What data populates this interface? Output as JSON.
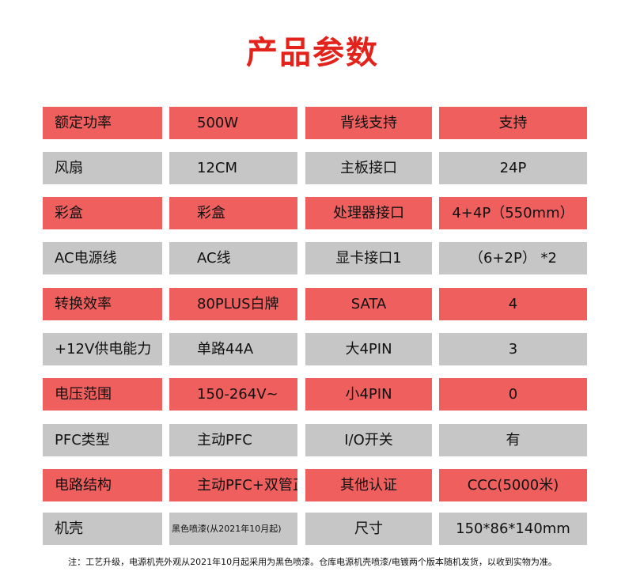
{
  "title": "产品参数",
  "colors": {
    "title": "#E3221B",
    "row_red": "#EE5F5E",
    "row_gray": "#C6C6C6"
  },
  "rows": [
    [
      "额定功率",
      "500W",
      "背线支持",
      "支持"
    ],
    [
      "风扇",
      "12CM",
      "主板接口",
      "24P"
    ],
    [
      "彩盒",
      "彩盒",
      "处理器接口",
      "4+4P（550mm）"
    ],
    [
      "AC电源线",
      "AC线",
      "显卡接口1",
      "（6+2P） *2"
    ],
    [
      "转换效率",
      "80PLUS白牌",
      "SATA",
      "4"
    ],
    [
      "+12V供电能力",
      "单路44A",
      "大4PIN",
      "3"
    ],
    [
      "电压范围",
      "150-264V~",
      "小4PIN",
      "0"
    ],
    [
      "PFC类型",
      "主动PFC",
      "I/O开关",
      "有"
    ],
    [
      "电路结构",
      "主动PFC+双管正激",
      "其他认证",
      "CCC(5000米)"
    ],
    [
      "机壳",
      "黑色喷漆(从2021年10月起)",
      "尺寸",
      "150*86*140mm"
    ]
  ],
  "note": "注：工艺升级，电源机壳外观从2021年10月起采用为黑色喷漆。仓库电源机壳喷漆/电镀两个版本随机发货，以收到实物为准。"
}
